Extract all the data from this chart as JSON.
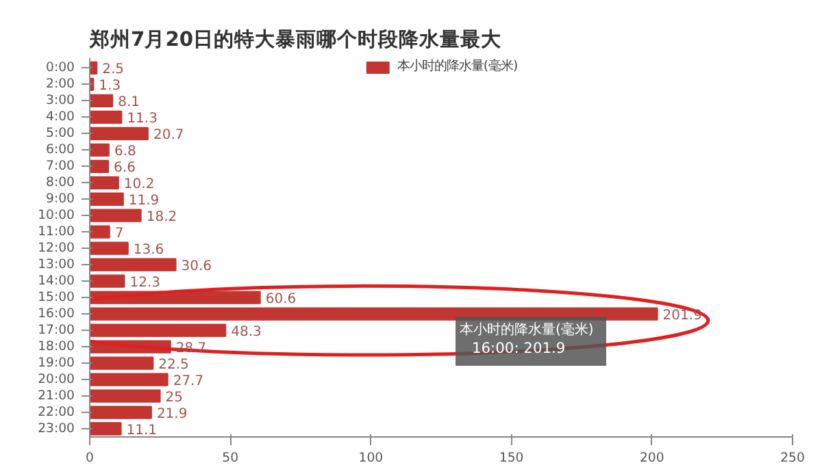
{
  "chart_data": {
    "type": "bar",
    "orientation": "horizontal",
    "title": "郑州7月20日的特大暴雨哪个时段降水量最大",
    "categories": [
      "0:00",
      "2:00",
      "3:00",
      "4:00",
      "5:00",
      "6:00",
      "7:00",
      "8:00",
      "9:00",
      "10:00",
      "11:00",
      "12:00",
      "13:00",
      "14:00",
      "15:00",
      "16:00",
      "17:00",
      "18:00",
      "19:00",
      "20:00",
      "21:00",
      "22:00",
      "23:00"
    ],
    "series": [
      {
        "name": "本小时的降水量(毫米)",
        "color": "#c23531",
        "values": [
          2.5,
          1.3,
          8.1,
          11.3,
          20.7,
          6.8,
          6.6,
          10.2,
          11.9,
          18.2,
          7,
          13.6,
          30.6,
          12.3,
          60.6,
          201.9,
          48.3,
          28.7,
          22.5,
          27.7,
          25,
          21.9,
          11.1
        ]
      }
    ],
    "xlim": [
      0,
      250
    ],
    "xticks": [
      0,
      50,
      100,
      150,
      200,
      250
    ],
    "grid": false,
    "legend": "top",
    "data_labels": true,
    "annotations": [
      "本小时的降水量(毫米)",
      "16:00: 201.9"
    ]
  }
}
